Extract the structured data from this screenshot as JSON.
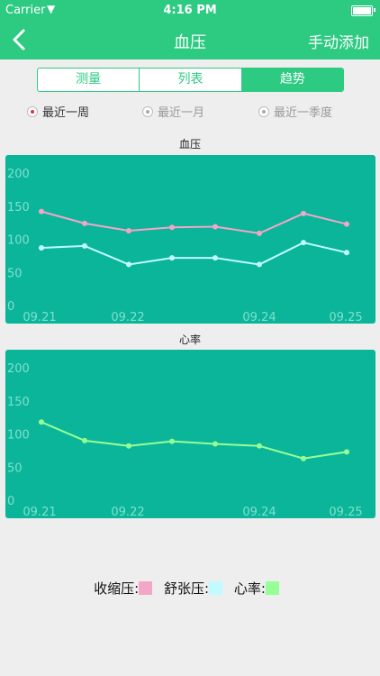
{
  "status": {
    "carrier": "Carrier",
    "time": "4:16 PM"
  },
  "nav": {
    "title": "血压",
    "add": "手动添加"
  },
  "tabs": [
    {
      "label": "测量",
      "active": false
    },
    {
      "label": "列表",
      "active": false
    },
    {
      "label": "趋势",
      "active": true
    }
  ],
  "ranges": [
    {
      "label": "最近一周",
      "checked": true
    },
    {
      "label": "最近一月",
      "checked": false
    },
    {
      "label": "最近一季度",
      "checked": false
    }
  ],
  "colors": {
    "primary": "#2dca82",
    "chart_bg": "#0bb59a",
    "systolic": "#f4a6c8",
    "diastolic": "#c2fbff",
    "heart_rate": "#96ff96"
  },
  "chart_data": [
    {
      "type": "line",
      "title": "血压",
      "x_ticks": [
        "09.21",
        "09.22",
        "09.24",
        "09.25"
      ],
      "ylim": [
        0,
        200
      ],
      "y_ticks": [
        "0",
        "50",
        "100",
        "150",
        "200"
      ],
      "series": [
        {
          "name": "收缩压",
          "values": [
            142,
            124,
            113,
            118,
            119,
            109,
            139,
            123
          ]
        },
        {
          "name": "舒张压",
          "values": [
            87,
            90,
            62,
            72,
            72,
            62,
            95,
            80
          ]
        }
      ]
    },
    {
      "type": "line",
      "title": "心率",
      "x_ticks": [
        "09.21",
        "09.22",
        "09.24",
        "09.25"
      ],
      "ylim": [
        0,
        200
      ],
      "y_ticks": [
        "0",
        "50",
        "100",
        "150",
        "200"
      ],
      "series": [
        {
          "name": "心率",
          "values": [
            118,
            90,
            82,
            89,
            85,
            82,
            63,
            73
          ]
        }
      ]
    }
  ],
  "legend": [
    {
      "label": "收缩压:",
      "color": "#f4a6c8"
    },
    {
      "label": "舒张压:",
      "color": "#c2fbff"
    },
    {
      "label": "心率:",
      "color": "#96ff96"
    }
  ]
}
